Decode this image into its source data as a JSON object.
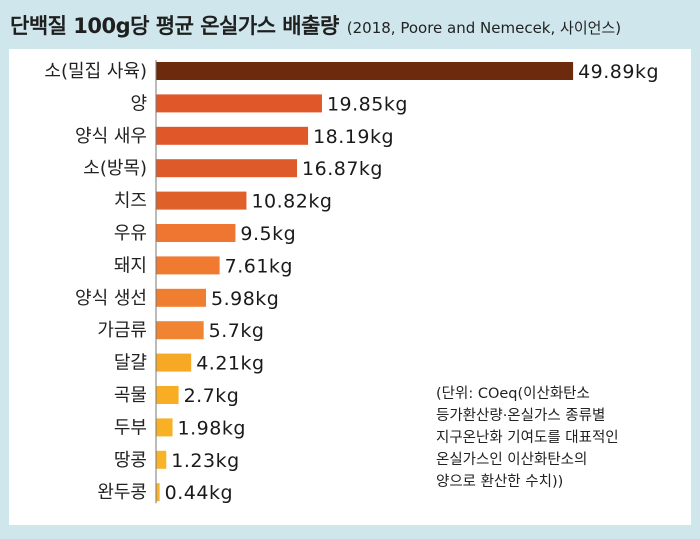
{
  "header": {
    "title": "단백질 100g당 평균 온실가스 배출량",
    "source": "(2018, Poore and Nemecek, 사이언스)"
  },
  "note": {
    "lines": [
      "(단위: COeq(이산화탄소",
      "등가환산량·온실가스 종류별",
      "지구온난화 기여도를 대표적인",
      "온실가스인 이산화탄소의",
      "양으로 환산한 수치))"
    ]
  },
  "chart_data": {
    "type": "bar",
    "orientation": "horizontal",
    "categories": [
      "소(밀집 사육)",
      "양",
      "양식 새우",
      "소(방목)",
      "치즈",
      "우유",
      "돼지",
      "양식 생선",
      "가금류",
      "달걀",
      "곡물",
      "두부",
      "땅콩",
      "완두콩"
    ],
    "values": [
      49.89,
      19.85,
      18.19,
      16.87,
      10.82,
      9.5,
      7.61,
      5.98,
      5.7,
      4.21,
      2.7,
      1.98,
      1.23,
      0.44
    ],
    "value_labels": [
      "49.89kg",
      "19.85kg",
      "18.19kg",
      "16.87kg",
      "10.82kg",
      "9.5kg",
      "7.61kg",
      "5.98kg",
      "5.7kg",
      "4.21kg",
      "2.7kg",
      "1.98kg",
      "1.23kg",
      "0.44kg"
    ],
    "colors": [
      "#6e2a0c",
      "#e0582a",
      "#e0582a",
      "#df5a2a",
      "#e0602a",
      "#ee7630",
      "#ef7a30",
      "#f07e30",
      "#f18432",
      "#f7a824",
      "#f8ad24",
      "#f8b025",
      "#f8b327",
      "#f8b427"
    ],
    "xlim": [
      0,
      50
    ],
    "grid": false,
    "legend": "none",
    "title": "",
    "xlabel": "",
    "ylabel": ""
  }
}
